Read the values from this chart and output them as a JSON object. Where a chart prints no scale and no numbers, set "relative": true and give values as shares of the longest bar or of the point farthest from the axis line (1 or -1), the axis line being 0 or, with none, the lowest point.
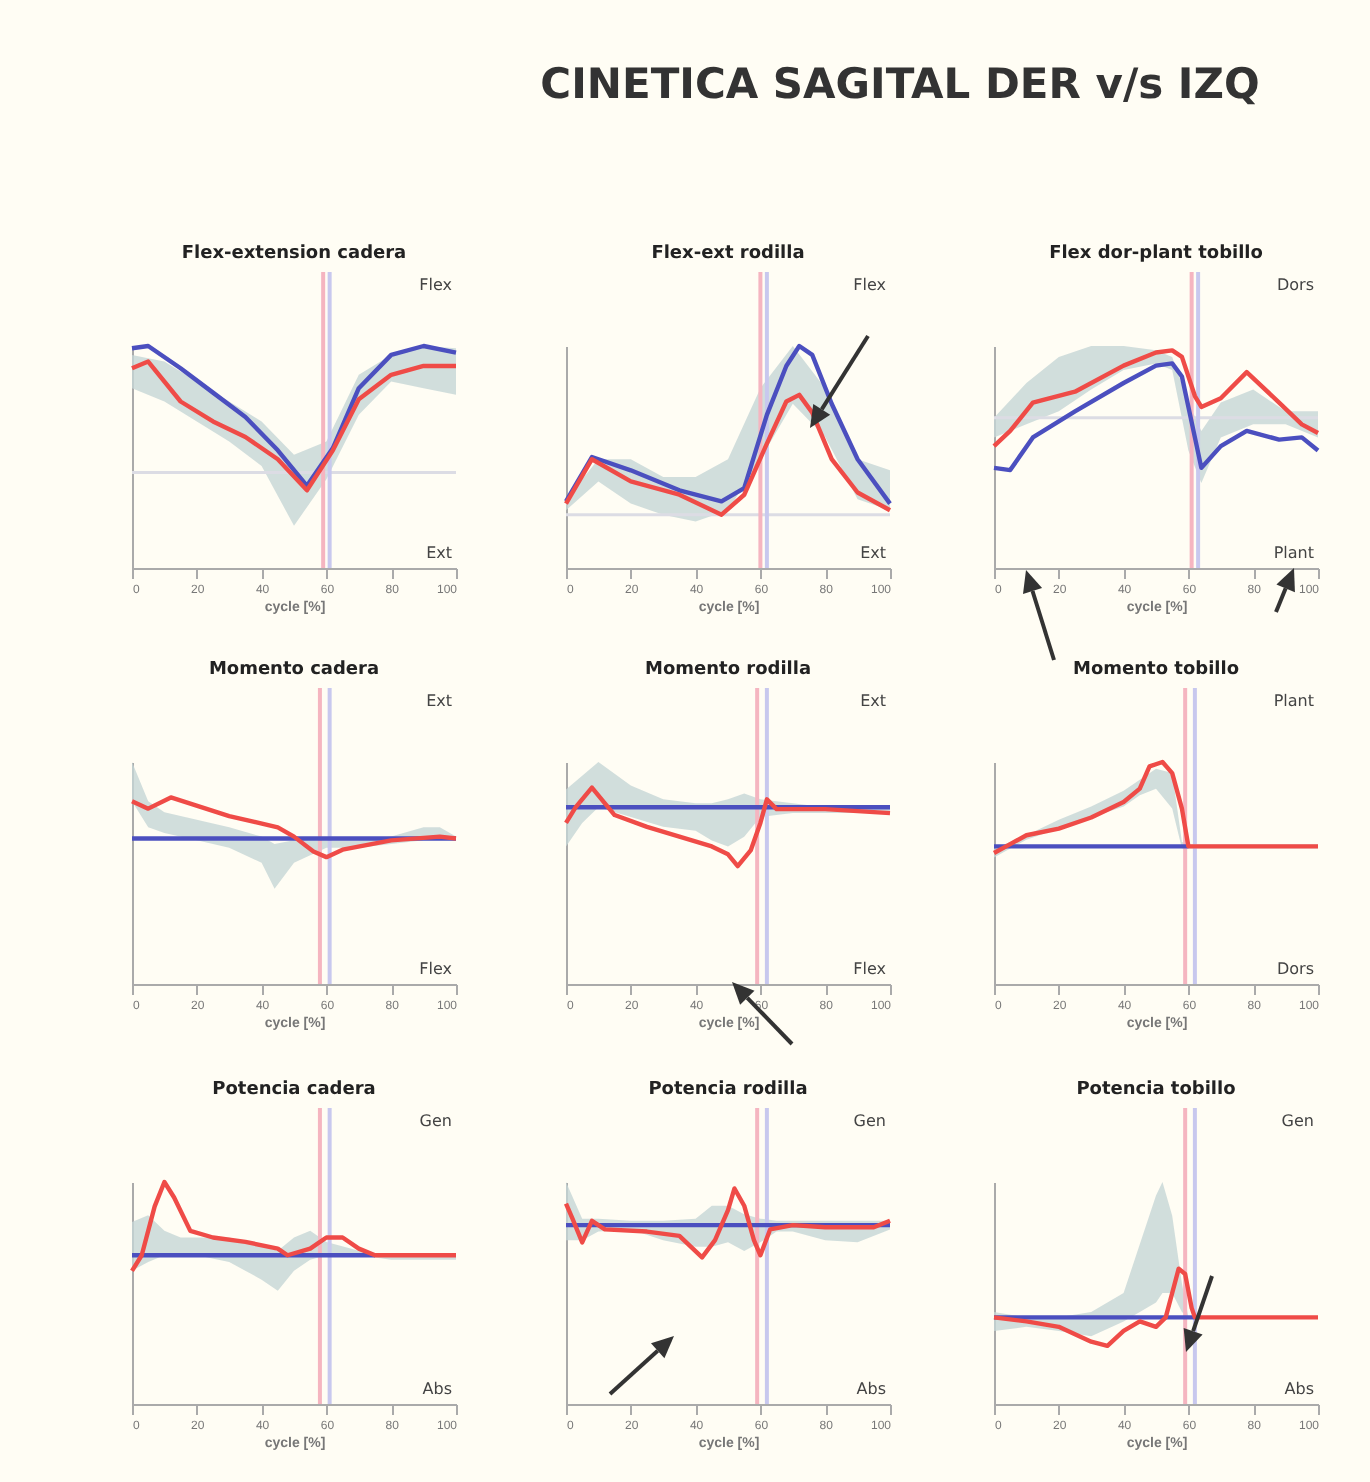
{
  "chart_data": [
    {
      "type": "other",
      "title": "CINETICA SAGITAL DER v/s IZQ"
    },
    {
      "type": "line",
      "title": "Flex-extension cadera",
      "xlabel": "cycle [%]",
      "relative": true,
      "xlim": [
        0,
        100
      ],
      "xticks": [
        0,
        20,
        40,
        60,
        80,
        100
      ],
      "annotations": [
        "Flex",
        "Ext"
      ],
      "ref_lines": [
        {
          "axis": "y",
          "value": 0.43,
          "color": "#dcdce4"
        },
        {
          "axis": "x",
          "value": 59,
          "color": "#f5b5c0"
        },
        {
          "axis": "x",
          "value": 61,
          "color": "#c8c8ee"
        }
      ],
      "series": [
        {
          "type": "area",
          "color": "#c5d6d6",
          "x": [
            0,
            10,
            20,
            30,
            40,
            50,
            60,
            70,
            80,
            90,
            100
          ],
          "values": [
            null,
            null,
            null,
            null,
            null,
            null,
            null,
            null,
            null,
            null,
            null
          ],
          "lower": [
            0.81,
            0.75,
            0.66,
            0.57,
            0.46,
            0.19,
            0.4,
            0.69,
            0.84,
            0.81,
            0.78
          ],
          "upper": [
            0.96,
            0.93,
            0.84,
            0.75,
            0.66,
            0.51,
            0.57,
            0.87,
            0.96,
            1,
            0.99
          ]
        },
        {
          "color": "#4b4fbf",
          "x": [
            0,
            5,
            15,
            25,
            35,
            45,
            54,
            62,
            70,
            80,
            90,
            100
          ],
          "values": [
            0.99,
            1,
            0.9,
            0.79,
            0.68,
            0.53,
            0.37,
            0.54,
            0.81,
            0.96,
            1,
            0.97
          ]
        },
        {
          "color": "#ef4b47",
          "x": [
            0,
            5,
            15,
            25,
            35,
            45,
            54,
            62,
            70,
            80,
            90,
            100
          ],
          "values": [
            0.9,
            0.93,
            0.75,
            0.66,
            0.59,
            0.49,
            0.35,
            0.53,
            0.76,
            0.87,
            0.91,
            0.91
          ]
        }
      ]
    },
    {
      "type": "line",
      "title": "Flex-ext rodilla",
      "xlabel": "cycle [%]",
      "relative": true,
      "xlim": [
        0,
        100
      ],
      "xticks": [
        0,
        20,
        40,
        60,
        80,
        100
      ],
      "annotations": [
        "Flex",
        "Ext"
      ],
      "ref_lines": [
        {
          "axis": "y",
          "value": 0.24,
          "color": "#dcdce4"
        },
        {
          "axis": "x",
          "value": 60,
          "color": "#f5b5c0"
        },
        {
          "axis": "x",
          "value": 62,
          "color": "#c8c8ee"
        }
      ],
      "series": [
        {
          "type": "area",
          "color": "#c5d6d6",
          "x": [
            0,
            10,
            20,
            30,
            40,
            50,
            60,
            70,
            80,
            90,
            100
          ],
          "values": [
            null,
            null,
            null,
            null,
            null,
            null,
            null,
            null,
            null,
            null,
            null
          ],
          "lower": [
            0.26,
            0.39,
            0.29,
            0.24,
            0.21,
            0.26,
            0.49,
            0.74,
            0.59,
            0.31,
            0.26
          ],
          "upper": [
            0.31,
            0.49,
            0.49,
            0.41,
            0.41,
            0.49,
            0.81,
            1,
            0.81,
            0.49,
            0.44
          ]
        },
        {
          "color": "#4b4fbf",
          "x": [
            0,
            8,
            20,
            35,
            48,
            55,
            62,
            68,
            72,
            76,
            82,
            90,
            100
          ],
          "values": [
            0.3,
            0.5,
            0.44,
            0.35,
            0.3,
            0.36,
            0.69,
            0.91,
            1,
            0.96,
            0.74,
            0.49,
            0.29
          ]
        },
        {
          "color": "#ef4b47",
          "x": [
            0,
            8,
            20,
            35,
            48,
            55,
            62,
            68,
            72,
            76,
            82,
            90,
            100
          ],
          "values": [
            0.29,
            0.49,
            0.39,
            0.33,
            0.24,
            0.33,
            0.56,
            0.75,
            0.78,
            0.7,
            0.49,
            0.34,
            0.26
          ]
        }
      ]
    },
    {
      "type": "line",
      "title": "Flex dor-plant tobillo",
      "xlabel": "cycle [%]",
      "relative": true,
      "xlim": [
        0,
        100
      ],
      "xticks": [
        0,
        20,
        40,
        60,
        80,
        100
      ],
      "annotations": [
        "Dors",
        "Plant"
      ],
      "ref_lines": [
        {
          "axis": "y",
          "value": 0.69,
          "color": "#dcdce4"
        },
        {
          "axis": "x",
          "value": 61,
          "color": "#f5b5c0"
        },
        {
          "axis": "x",
          "value": 63,
          "color": "#c8c8ee"
        }
      ],
      "series": [
        {
          "type": "area",
          "color": "#c5d6d6",
          "x": [
            0,
            10,
            20,
            30,
            40,
            50,
            55,
            60,
            64,
            70,
            80,
            90,
            100
          ],
          "values": [
            null,
            null,
            null,
            null,
            null,
            null,
            null,
            null,
            null,
            null,
            null,
            null,
            null
          ],
          "lower": [
            0.6,
            0.66,
            0.72,
            0.82,
            0.91,
            0.94,
            0.91,
            0.54,
            0.39,
            0.6,
            0.66,
            0.66,
            0.6
          ],
          "upper": [
            0.69,
            0.85,
            0.97,
            1.02,
            1.02,
            1,
            0.97,
            0.76,
            0.63,
            0.76,
            0.82,
            0.72,
            0.72
          ]
        },
        {
          "color": "#4b4fbf",
          "x": [
            0,
            5,
            12,
            25,
            40,
            50,
            55,
            58,
            62,
            64,
            70,
            78,
            88,
            95,
            100
          ],
          "values": [
            0.46,
            0.45,
            0.6,
            0.72,
            0.85,
            0.93,
            0.94,
            0.88,
            0.6,
            0.46,
            0.56,
            0.63,
            0.59,
            0.6,
            0.54
          ]
        },
        {
          "color": "#ef4b47",
          "x": [
            0,
            5,
            12,
            25,
            40,
            50,
            55,
            58,
            62,
            64,
            70,
            78,
            88,
            95,
            100
          ],
          "values": [
            0.56,
            0.63,
            0.76,
            0.81,
            0.93,
            0.99,
            1,
            0.97,
            0.79,
            0.74,
            0.78,
            0.9,
            0.76,
            0.66,
            0.62
          ]
        }
      ]
    },
    {
      "type": "line",
      "title": "Momento cadera",
      "xlabel": "cycle [%]",
      "relative": true,
      "xlim": [
        0,
        100
      ],
      "xticks": [
        0,
        20,
        40,
        60,
        80,
        100
      ],
      "annotations": [
        "Ext",
        "Flex"
      ],
      "ref_lines": [
        {
          "axis": "x",
          "value": 58,
          "color": "#f5b5c0"
        },
        {
          "axis": "x",
          "value": 61,
          "color": "#c8c8ee"
        }
      ],
      "series": [
        {
          "type": "area",
          "color": "#c5d6d6",
          "x": [
            0,
            5,
            10,
            20,
            30,
            40,
            44,
            50,
            60,
            70,
            80,
            90,
            95,
            100
          ],
          "values": [
            null,
            null,
            null,
            null,
            null,
            null,
            null,
            null,
            null,
            null,
            null,
            null,
            null,
            null
          ],
          "lower": [
            0.98,
            0.84,
            0.81,
            0.77,
            0.73,
            0.65,
            0.51,
            0.65,
            0.73,
            0.73,
            0.75,
            0.77,
            0.77,
            0.77
          ],
          "upper": [
            1.19,
            0.98,
            0.92,
            0.88,
            0.84,
            0.79,
            0.75,
            0.77,
            0.77,
            0.77,
            0.79,
            0.84,
            0.84,
            0.79
          ]
        },
        {
          "color": "#4b4fbf",
          "x": [
            0,
            100
          ],
          "values": [
            0.78,
            0.78
          ]
        },
        {
          "color": "#ef4b47",
          "x": [
            0,
            5,
            12,
            30,
            45,
            50,
            56,
            60,
            65,
            80,
            95,
            100
          ],
          "values": [
            0.98,
            0.94,
            1,
            0.9,
            0.84,
            0.79,
            0.71,
            0.68,
            0.72,
            0.77,
            0.79,
            0.78
          ]
        }
      ]
    },
    {
      "type": "line",
      "title": "Momento rodilla",
      "xlabel": "cycle [%]",
      "relative": true,
      "xlim": [
        0,
        100
      ],
      "xticks": [
        0,
        20,
        40,
        60,
        80,
        100
      ],
      "annotations": [
        "Ext",
        "Flex"
      ],
      "ref_lines": [
        {
          "axis": "x",
          "value": 59,
          "color": "#f5b5c0"
        },
        {
          "axis": "x",
          "value": 62,
          "color": "#c8c8ee"
        }
      ],
      "series": [
        {
          "type": "area",
          "color": "#c5d6d6",
          "x": [
            0,
            5,
            10,
            20,
            30,
            40,
            45,
            50,
            55,
            60,
            70,
            80,
            90,
            100
          ],
          "values": [
            null,
            null,
            null,
            null,
            null,
            null,
            null,
            null,
            null,
            null,
            null,
            null,
            null,
            null
          ],
          "lower": [
            0.7,
            0.82,
            0.9,
            0.85,
            0.8,
            0.78,
            0.73,
            0.7,
            0.75,
            0.85,
            0.87,
            0.87,
            0.87,
            0.87
          ],
          "upper": [
            0.99,
            1.06,
            1.13,
            1.01,
            0.94,
            0.92,
            0.92,
            0.94,
            0.97,
            0.94,
            0.92,
            0.9,
            0.9,
            0.9
          ]
        },
        {
          "color": "#4b4fbf",
          "x": [
            0,
            100
          ],
          "values": [
            0.9,
            0.9
          ]
        },
        {
          "color": "#ef4b47",
          "x": [
            0,
            3,
            8,
            15,
            25,
            35,
            45,
            50,
            53,
            57,
            60,
            62,
            65,
            80,
            100
          ],
          "values": [
            0.82,
            0.9,
            1,
            0.86,
            0.8,
            0.75,
            0.7,
            0.66,
            0.6,
            0.68,
            0.82,
            0.94,
            0.89,
            0.89,
            0.87
          ]
        }
      ]
    },
    {
      "type": "line",
      "title": "Momento tobillo",
      "xlabel": "cycle [%]",
      "relative": true,
      "xlim": [
        0,
        100
      ],
      "xticks": [
        0,
        20,
        40,
        60,
        80,
        100
      ],
      "annotations": [
        "Plant",
        "Dors"
      ],
      "ref_lines": [
        {
          "axis": "x",
          "value": 59,
          "color": "#f5b5c0"
        },
        {
          "axis": "x",
          "value": 62,
          "color": "#c8c8ee"
        }
      ],
      "series": [
        {
          "type": "area",
          "color": "#c5d6d6",
          "x": [
            0,
            10,
            20,
            30,
            40,
            45,
            50,
            55,
            58,
            60,
            100
          ],
          "values": [
            null,
            null,
            null,
            null,
            null,
            null,
            null,
            null,
            null,
            null,
            null
          ],
          "lower": [
            0.57,
            0.65,
            0.7,
            0.75,
            0.8,
            0.85,
            0.88,
            0.79,
            0.61,
            0.61,
            0.61
          ],
          "upper": [
            0.61,
            0.67,
            0.74,
            0.8,
            0.87,
            0.92,
            0.97,
            0.95,
            0.64,
            0.63,
            0.63
          ]
        },
        {
          "color": "#4b4fbf",
          "x": [
            0,
            60
          ],
          "values": [
            0.62,
            0.62
          ]
        },
        {
          "color": "#ef4b47",
          "x": [
            0,
            5,
            10,
            20,
            30,
            40,
            45,
            48,
            52,
            55,
            58,
            60,
            100
          ],
          "values": [
            0.59,
            0.63,
            0.67,
            0.7,
            0.75,
            0.82,
            0.88,
            0.98,
            1,
            0.95,
            0.79,
            0.62,
            0.62
          ]
        }
      ]
    },
    {
      "type": "line",
      "title": "Potencia cadera",
      "xlabel": "cycle [%]",
      "relative": true,
      "xlim": [
        0,
        100
      ],
      "xticks": [
        0,
        20,
        40,
        60,
        80,
        100
      ],
      "annotations": [
        "Gen",
        "Abs"
      ],
      "ref_lines": [
        {
          "axis": "x",
          "value": 58,
          "color": "#f5b5c0"
        },
        {
          "axis": "x",
          "value": 61,
          "color": "#c8c8ee"
        }
      ],
      "series": [
        {
          "type": "area",
          "color": "#c5d6d6",
          "x": [
            0,
            5,
            10,
            15,
            20,
            30,
            40,
            45,
            50,
            55,
            60,
            70,
            80,
            100
          ],
          "values": [
            null,
            null,
            null,
            null,
            null,
            null,
            null,
            null,
            null,
            null,
            null,
            null,
            null,
            null
          ],
          "lower": [
            0.6,
            0.64,
            0.67,
            0.67,
            0.67,
            0.64,
            0.56,
            0.51,
            0.6,
            0.65,
            0.67,
            0.67,
            0.65,
            0.65
          ],
          "upper": [
            0.82,
            0.85,
            0.78,
            0.75,
            0.75,
            0.75,
            0.71,
            0.69,
            0.75,
            0.78,
            0.73,
            0.69,
            0.67,
            0.67
          ]
        },
        {
          "color": "#4b4fbf",
          "x": [
            0,
            75
          ],
          "values": [
            0.67,
            0.67
          ]
        },
        {
          "color": "#ef4b47",
          "x": [
            0,
            3,
            7,
            10,
            13,
            18,
            25,
            35,
            45,
            48,
            55,
            60,
            65,
            70,
            75,
            100
          ],
          "values": [
            0.6,
            0.67,
            0.89,
            1,
            0.93,
            0.78,
            0.75,
            0.73,
            0.7,
            0.67,
            0.7,
            0.75,
            0.75,
            0.7,
            0.67,
            0.67
          ]
        }
      ]
    },
    {
      "type": "line",
      "title": "Potencia rodilla",
      "xlabel": "cycle [%]",
      "relative": true,
      "xlim": [
        0,
        100
      ],
      "xticks": [
        0,
        20,
        40,
        60,
        80,
        100
      ],
      "annotations": [
        "Gen",
        "Abs"
      ],
      "ref_lines": [
        {
          "axis": "x",
          "value": 59,
          "color": "#f5b5c0"
        },
        {
          "axis": "x",
          "value": 62,
          "color": "#c8c8ee"
        }
      ],
      "series": [
        {
          "type": "area",
          "color": "#c5d6d6",
          "x": [
            0,
            5,
            10,
            20,
            30,
            40,
            45,
            50,
            55,
            60,
            65,
            70,
            80,
            90,
            100
          ],
          "values": [
            null,
            null,
            null,
            null,
            null,
            null,
            null,
            null,
            null,
            null,
            null,
            null,
            null,
            null,
            null
          ],
          "lower": [
            0.76,
            0.76,
            0.8,
            0.81,
            0.76,
            0.73,
            0.73,
            0.75,
            0.71,
            0.75,
            0.8,
            0.8,
            0.76,
            0.75,
            0.81
          ],
          "upper": [
            1.03,
            0.86,
            0.86,
            0.85,
            0.85,
            0.86,
            0.92,
            0.92,
            0.88,
            0.86,
            0.85,
            0.85,
            0.85,
            0.85,
            0.85
          ]
        },
        {
          "color": "#4b4fbf",
          "x": [
            0,
            100
          ],
          "values": [
            0.83,
            0.83
          ]
        },
        {
          "color": "#ef4b47",
          "x": [
            0,
            2,
            5,
            8,
            12,
            25,
            35,
            42,
            46,
            50,
            52,
            55,
            58,
            60,
            63,
            70,
            80,
            95,
            100
          ],
          "values": [
            0.93,
            0.86,
            0.75,
            0.85,
            0.81,
            0.8,
            0.78,
            0.68,
            0.76,
            0.9,
            1,
            0.92,
            0.76,
            0.69,
            0.81,
            0.83,
            0.82,
            0.82,
            0.85
          ]
        }
      ]
    },
    {
      "type": "line",
      "title": "Potencia tobillo",
      "xlabel": "cycle [%]",
      "relative": true,
      "xlim": [
        0,
        100
      ],
      "xticks": [
        0,
        20,
        40,
        60,
        80,
        100
      ],
      "annotations": [
        "Gen",
        "Abs"
      ],
      "ref_lines": [
        {
          "axis": "x",
          "value": 59,
          "color": "#f5b5c0"
        },
        {
          "axis": "x",
          "value": 62,
          "color": "#c8c8ee"
        }
      ],
      "series": [
        {
          "type": "area",
          "color": "#c5d6d6",
          "x": [
            0,
            10,
            20,
            30,
            40,
            45,
            50,
            52,
            55,
            58,
            60,
            100
          ],
          "values": [
            null,
            null,
            null,
            null,
            null,
            null,
            null,
            null,
            null,
            null,
            null,
            null
          ],
          "lower": [
            0.54,
            0.57,
            0.54,
            0.5,
            0.61,
            0.68,
            0.75,
            0.82,
            0.82,
            0.68,
            0.64,
            0.64
          ],
          "upper": [
            0.68,
            0.64,
            0.64,
            0.68,
            0.82,
            1.18,
            1.54,
            1.64,
            1.39,
            0.89,
            0.64,
            0.64
          ]
        },
        {
          "color": "#4b4fbf",
          "x": [
            0,
            62
          ],
          "values": [
            0.64,
            0.64
          ]
        },
        {
          "color": "#ef4b47",
          "x": [
            0,
            10,
            20,
            30,
            35,
            40,
            45,
            50,
            53,
            55,
            57,
            59,
            61,
            62,
            100
          ],
          "values": [
            0.64,
            0.61,
            0.57,
            0.46,
            0.43,
            0.54,
            0.61,
            0.57,
            0.64,
            0.82,
            1,
            0.96,
            0.71,
            0.64,
            0.64
          ]
        }
      ]
    }
  ]
}
